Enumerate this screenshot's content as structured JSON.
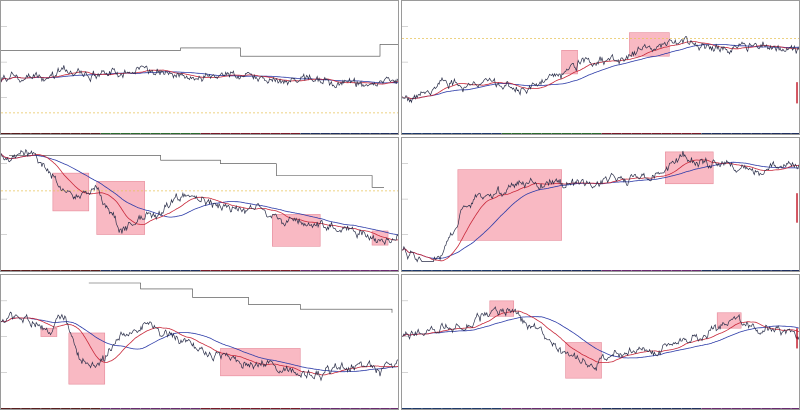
{
  "colors": {
    "price": "#2b2f4a",
    "ma_fast": "#c8283a",
    "ma_slow": "#2c3ba8",
    "highlight": "#f7a7b4",
    "step": "#444444",
    "dotted": "#e7c35a",
    "accent_red": "#c01020"
  },
  "chart_data": [
    {
      "type": "line",
      "title": "",
      "highlights": [],
      "dotted_levels": [
        0.88
      ],
      "side_marks": [],
      "timebar": [
        "#5a1f1f",
        "#2d6b2f",
        "#7a1a2a",
        "#203060"
      ],
      "trend": [
        [
          0,
          0.6
        ],
        [
          0.05,
          0.57
        ],
        [
          0.15,
          0.54
        ],
        [
          0.25,
          0.55
        ],
        [
          0.35,
          0.53
        ],
        [
          0.45,
          0.54
        ],
        [
          0.5,
          0.57
        ],
        [
          0.6,
          0.55
        ],
        [
          0.7,
          0.59
        ],
        [
          0.8,
          0.62
        ],
        [
          0.9,
          0.63
        ],
        [
          1.0,
          0.61
        ]
      ],
      "step_line": [
        [
          0,
          0.35
        ],
        [
          0.45,
          0.35
        ],
        [
          0.45,
          0.33
        ],
        [
          0.6,
          0.33
        ],
        [
          0.6,
          0.4
        ],
        [
          0.95,
          0.4
        ],
        [
          0.95,
          0.3
        ],
        [
          1.0,
          0.3
        ]
      ],
      "seed": 11
    },
    {
      "type": "line",
      "title": "",
      "highlights": [
        [
          0.4,
          0.35,
          0.44,
          0.55
        ],
        [
          0.57,
          0.2,
          0.67,
          0.4
        ]
      ],
      "dotted_levels": [
        0.25
      ],
      "side_marks": [
        [
          0.99,
          0.62,
          0.8
        ]
      ],
      "timebar": [
        "#1f3a6b",
        "#2d6b2f",
        "#7a1a2a",
        "#203060"
      ],
      "trend": [
        [
          0,
          0.75
        ],
        [
          0.05,
          0.72
        ],
        [
          0.1,
          0.62
        ],
        [
          0.2,
          0.66
        ],
        [
          0.3,
          0.66
        ],
        [
          0.4,
          0.55
        ],
        [
          0.45,
          0.44
        ],
        [
          0.55,
          0.45
        ],
        [
          0.6,
          0.35
        ],
        [
          0.7,
          0.28
        ],
        [
          0.8,
          0.32
        ],
        [
          0.9,
          0.3
        ],
        [
          1.0,
          0.35
        ]
      ],
      "step_line": [],
      "seed": 23
    },
    {
      "type": "line",
      "title": "",
      "highlights": [
        [
          0.13,
          0.23,
          0.22,
          0.55
        ],
        [
          0.24,
          0.3,
          0.36,
          0.75
        ],
        [
          0.68,
          0.58,
          0.8,
          0.85
        ],
        [
          0.93,
          0.72,
          0.97,
          0.84
        ]
      ],
      "dotted_levels": [
        0.38
      ],
      "side_marks": [],
      "timebar": [
        "#5a1f1f",
        "#203060",
        "#7a1a2a",
        "#6a2a70"
      ],
      "trend": [
        [
          0,
          0.05
        ],
        [
          0.08,
          0.05
        ],
        [
          0.12,
          0.25
        ],
        [
          0.18,
          0.45
        ],
        [
          0.24,
          0.35
        ],
        [
          0.3,
          0.7
        ],
        [
          0.38,
          0.6
        ],
        [
          0.46,
          0.4
        ],
        [
          0.55,
          0.53
        ],
        [
          0.65,
          0.55
        ],
        [
          0.75,
          0.65
        ],
        [
          0.85,
          0.7
        ],
        [
          0.95,
          0.8
        ],
        [
          1.0,
          0.75
        ]
      ],
      "step_line": [
        [
          0.02,
          0.08
        ],
        [
          0.4,
          0.08
        ],
        [
          0.4,
          0.12
        ],
        [
          0.55,
          0.12
        ],
        [
          0.55,
          0.15
        ],
        [
          0.69,
          0.15
        ],
        [
          0.69,
          0.25
        ],
        [
          0.93,
          0.25
        ],
        [
          0.93,
          0.35
        ],
        [
          0.96,
          0.35
        ]
      ],
      "seed": 37
    },
    {
      "type": "line",
      "title": "",
      "highlights": [
        [
          0.14,
          0.2,
          0.4,
          0.8
        ],
        [
          0.66,
          0.05,
          0.78,
          0.32
        ]
      ],
      "dotted_levels": [],
      "side_marks": [
        [
          0.99,
          0.4,
          0.65
        ]
      ],
      "timebar": [
        "#1f3a6b",
        "#203060",
        "#6a2a70",
        "#203060"
      ],
      "trend": [
        [
          0,
          0.9
        ],
        [
          0.05,
          0.95
        ],
        [
          0.1,
          0.92
        ],
        [
          0.15,
          0.55
        ],
        [
          0.2,
          0.45
        ],
        [
          0.25,
          0.4
        ],
        [
          0.35,
          0.28
        ],
        [
          0.45,
          0.32
        ],
        [
          0.55,
          0.3
        ],
        [
          0.65,
          0.25
        ],
        [
          0.7,
          0.1
        ],
        [
          0.8,
          0.15
        ],
        [
          0.9,
          0.2
        ],
        [
          0.95,
          0.15
        ],
        [
          1.0,
          0.12
        ]
      ],
      "step_line": [],
      "seed": 51
    },
    {
      "type": "line",
      "title": "",
      "highlights": [
        [
          0.1,
          0.38,
          0.14,
          0.45
        ],
        [
          0.17,
          0.42,
          0.26,
          0.85
        ],
        [
          0.55,
          0.55,
          0.75,
          0.78
        ]
      ],
      "dotted_levels": [],
      "side_marks": [],
      "timebar": [
        "#5a1f1f",
        "#6a2a70",
        "#7a1a2a",
        "#6a2a70"
      ],
      "trend": [
        [
          0,
          0.3
        ],
        [
          0.06,
          0.3
        ],
        [
          0.12,
          0.4
        ],
        [
          0.16,
          0.28
        ],
        [
          0.2,
          0.65
        ],
        [
          0.24,
          0.75
        ],
        [
          0.3,
          0.45
        ],
        [
          0.36,
          0.35
        ],
        [
          0.42,
          0.45
        ],
        [
          0.5,
          0.55
        ],
        [
          0.6,
          0.65
        ],
        [
          0.7,
          0.72
        ],
        [
          0.8,
          0.78
        ],
        [
          0.88,
          0.65
        ],
        [
          0.95,
          0.72
        ],
        [
          1.0,
          0.7
        ]
      ],
      "step_line": [
        [
          0.22,
          0.0
        ],
        [
          0.35,
          0.0
        ],
        [
          0.35,
          0.05
        ],
        [
          0.48,
          0.05
        ],
        [
          0.48,
          0.12
        ],
        [
          0.62,
          0.12
        ],
        [
          0.62,
          0.18
        ],
        [
          0.75,
          0.18
        ],
        [
          0.75,
          0.22
        ],
        [
          0.98,
          0.22
        ],
        [
          0.98,
          0.25
        ]
      ],
      "seed": 67
    },
    {
      "type": "line",
      "title": "",
      "highlights": [
        [
          0.22,
          0.15,
          0.28,
          0.28
        ],
        [
          0.41,
          0.5,
          0.5,
          0.8
        ],
        [
          0.79,
          0.25,
          0.85,
          0.38
        ]
      ],
      "dotted_levels": [],
      "side_marks": [
        [
          0.99,
          0.38,
          0.55
        ]
      ],
      "timebar": [
        "#1f3a6b",
        "#6a2a70",
        "#203060",
        "#6a2a70"
      ],
      "trend": [
        [
          0,
          0.45
        ],
        [
          0.08,
          0.4
        ],
        [
          0.15,
          0.35
        ],
        [
          0.22,
          0.22
        ],
        [
          0.28,
          0.25
        ],
        [
          0.35,
          0.45
        ],
        [
          0.42,
          0.6
        ],
        [
          0.48,
          0.7
        ],
        [
          0.55,
          0.6
        ],
        [
          0.65,
          0.55
        ],
        [
          0.75,
          0.45
        ],
        [
          0.82,
          0.32
        ],
        [
          0.9,
          0.4
        ],
        [
          1.0,
          0.42
        ]
      ],
      "step_line": [],
      "seed": 79
    }
  ]
}
